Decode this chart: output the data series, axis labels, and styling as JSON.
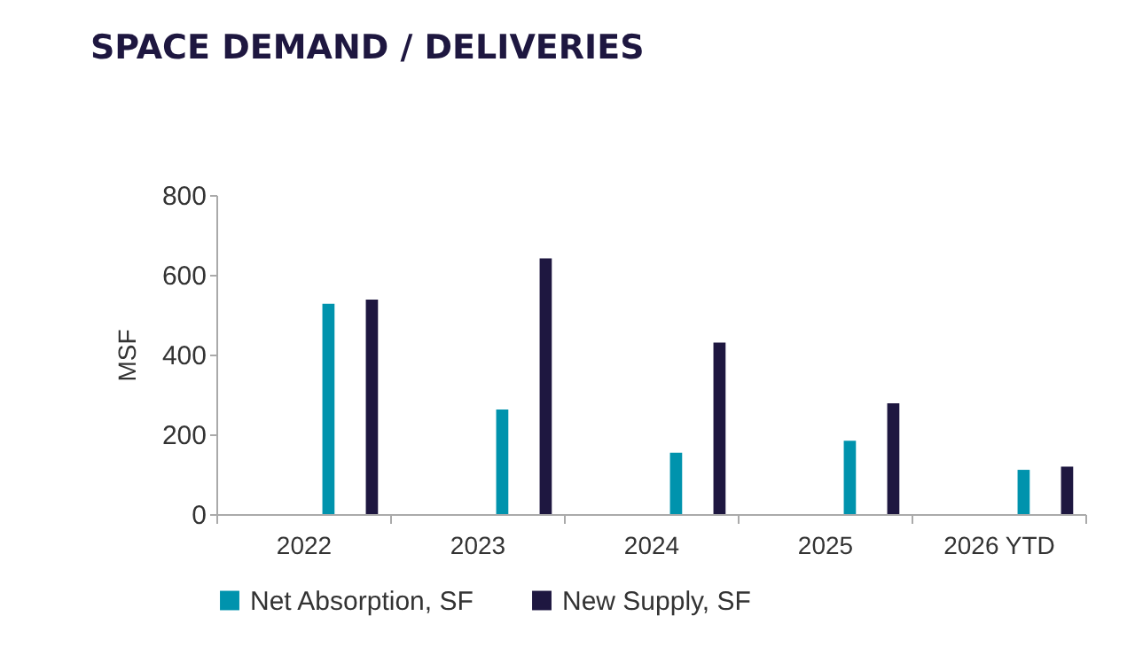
{
  "chart_data": {
    "type": "bar",
    "title": "SPACE DEMAND / DELIVERIES",
    "ylabel": "MSF",
    "categories": [
      "2022",
      "2023",
      "2024",
      "2025",
      "2026 YTD"
    ],
    "series": [
      {
        "name": "Net Absorption, SF",
        "color": "#0093ad",
        "values": [
          527,
          262,
          154,
          184,
          111
        ]
      },
      {
        "name": "New Supply, SF",
        "color": "#1e1740",
        "values": [
          538,
          641,
          430,
          278,
          119
        ]
      }
    ],
    "ylim": [
      0,
      800
    ],
    "yticks": [
      0,
      200,
      400,
      600,
      800
    ],
    "grid": false,
    "legend": "bottom"
  }
}
